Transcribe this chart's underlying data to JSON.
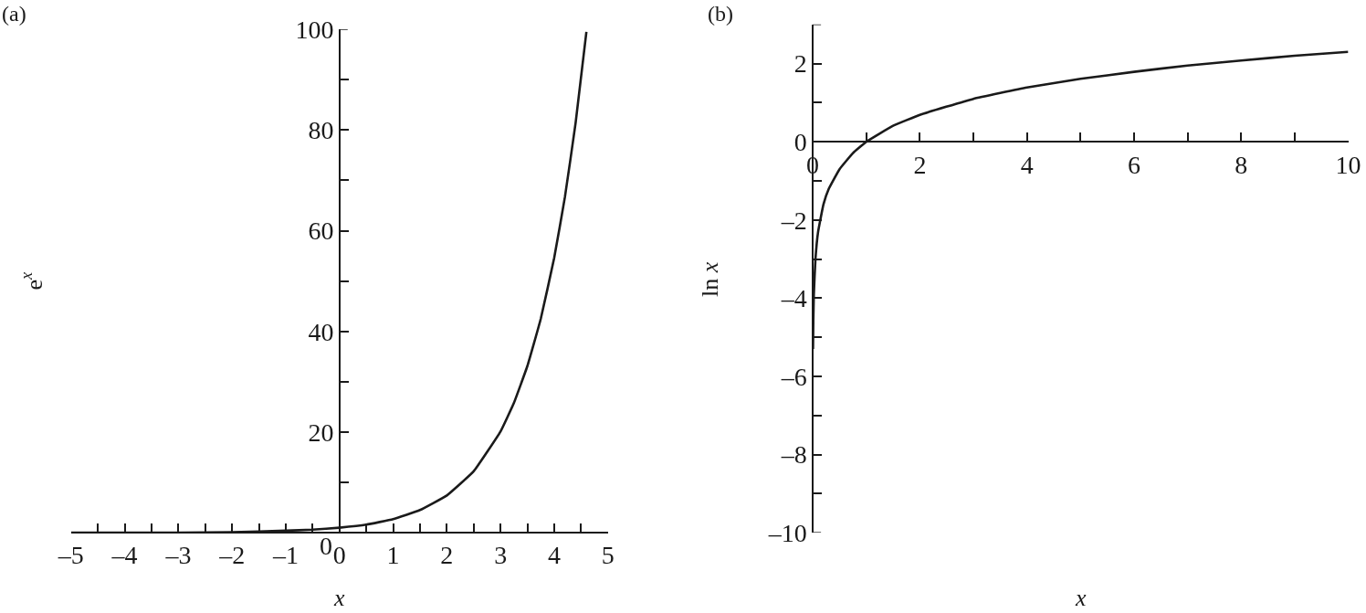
{
  "chart_data": [
    {
      "type": "line",
      "title": "(a)",
      "xlabel": "x",
      "ylabel": "e$^{x}$",
      "marker": "none",
      "line_style": "solid",
      "x": [
        -5,
        -4,
        -3,
        -2,
        -1,
        -0.5,
        0,
        0.5,
        1,
        1.5,
        2,
        2.5,
        3,
        3.25,
        3.5,
        3.75,
        4,
        4.2,
        4.4,
        4.6
      ],
      "series": [
        {
          "color": "#1a1a1a",
          "values": [
            0,
            0,
            0,
            0.1,
            0.4,
            0.6,
            1,
            1.6,
            2.7,
            4.5,
            7.4,
            12.2,
            20.1,
            25.8,
            33.1,
            42.5,
            54.6,
            66.7,
            81.5,
            99.5
          ]
        }
      ],
      "xlim": [
        -5,
        5
      ],
      "ylim": [
        0,
        100
      ],
      "xticks": [
        {
          "value": -5,
          "label": "–5"
        },
        {
          "value": -4.5,
          "label": null
        },
        {
          "value": -4,
          "label": "–4"
        },
        {
          "value": -3.5,
          "label": null
        },
        {
          "value": -3,
          "label": "–3"
        },
        {
          "value": -2.5,
          "label": null
        },
        {
          "value": -2,
          "label": "–2"
        },
        {
          "value": -1.5,
          "label": null
        },
        {
          "value": -1,
          "label": "–1"
        },
        {
          "value": -0.5,
          "label": null
        },
        0,
        {
          "value": 0.5,
          "label": null
        },
        1,
        {
          "value": 1.5,
          "label": null
        },
        2,
        {
          "value": 2.5,
          "label": null
        },
        3,
        {
          "value": 3.5,
          "label": null
        },
        4,
        {
          "value": 4.5,
          "label": null
        },
        5
      ],
      "yticks": [
        0,
        {
          "value": 10,
          "label": null
        },
        20,
        {
          "value": 30,
          "label": null
        },
        40,
        {
          "value": 50,
          "label": null
        },
        60,
        {
          "value": 70,
          "label": null
        },
        80,
        {
          "value": 90,
          "label": null
        },
        100
      ]
    },
    {
      "type": "line",
      "title": "(b)",
      "xlabel": "x",
      "ylabel": "ln x",
      "marker": "none",
      "line_style": "solid",
      "x": [
        0.005,
        0.01,
        0.02,
        0.05,
        0.1,
        0.2,
        0.3,
        0.5,
        0.75,
        1,
        1.5,
        2,
        3,
        4,
        5,
        6,
        7,
        8,
        9,
        10
      ],
      "series": [
        {
          "color": "#1a1a1a",
          "values": [
            -5.3,
            -4.6,
            -3.9,
            -3.0,
            -2.3,
            -1.6,
            -1.2,
            -0.7,
            -0.29,
            0,
            0.41,
            0.69,
            1.1,
            1.39,
            1.61,
            1.79,
            1.95,
            2.08,
            2.2,
            2.3
          ]
        }
      ],
      "xlim": [
        0,
        10
      ],
      "ylim": [
        -10,
        3
      ],
      "xticks": [
        0,
        {
          "value": 1,
          "label": null
        },
        2,
        {
          "value": 3,
          "label": null
        },
        4,
        {
          "value": 5,
          "label": null
        },
        6,
        {
          "value": 7,
          "label": null
        },
        8,
        {
          "value": 9,
          "label": null
        },
        10
      ],
      "yticks": [
        {
          "value": -10,
          "label": "–10"
        },
        {
          "value": -9,
          "label": null
        },
        {
          "value": -8,
          "label": "–8"
        },
        {
          "value": -7,
          "label": null
        },
        {
          "value": -6,
          "label": "–6"
        },
        {
          "value": -5,
          "label": null
        },
        {
          "value": -4,
          "label": "–4"
        },
        {
          "value": -3,
          "label": null
        },
        {
          "value": -2,
          "label": "–2"
        },
        {
          "value": -1,
          "label": null
        },
        0,
        {
          "value": 1,
          "label": null
        },
        2,
        {
          "value": 3,
          "label": null
        }
      ]
    }
  ]
}
